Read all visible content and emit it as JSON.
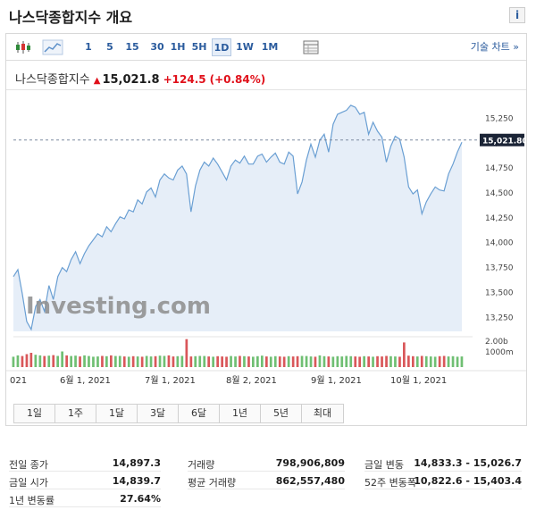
{
  "header": {
    "title": "나스닥종합지수 개요",
    "info_label": "i"
  },
  "toolbar": {
    "intervals": [
      "1",
      "5",
      "15",
      "30",
      "1H",
      "5H",
      "1D",
      "1W",
      "1M"
    ],
    "active_interval": "1D",
    "tech_chart_link": "기술 차트 »"
  },
  "quote": {
    "name": "나스닥종합지수",
    "price": "15,021.8",
    "change": "+124.5",
    "change_pct": "(+0.84%)",
    "up_color": "#e0101a"
  },
  "chart_data": {
    "type": "area",
    "y_ticks": [
      "15,250",
      "15,000",
      "14,750",
      "14,500",
      "14,250",
      "14,000",
      "13,750",
      "13,500",
      "13,250"
    ],
    "ylim": [
      13100,
      15450
    ],
    "current_value_label": "15,021.80",
    "current_value": 15021.8,
    "volume_ticks": [
      "2.00b",
      "1000m"
    ],
    "x_labels": [
      "021",
      "6월 1, 2021",
      "7월 1, 2021",
      "8월 2, 2021",
      "9월 1, 2021",
      "10월 1, 2021"
    ],
    "watermark": "Investing.com",
    "values": [
      13650,
      13720,
      13480,
      13200,
      13120,
      13350,
      13420,
      13300,
      13560,
      13420,
      13650,
      13740,
      13700,
      13820,
      13900,
      13780,
      13880,
      13960,
      14020,
      14080,
      14050,
      14150,
      14100,
      14180,
      14250,
      14230,
      14320,
      14300,
      14420,
      14380,
      14500,
      14540,
      14450,
      14620,
      14680,
      14640,
      14620,
      14720,
      14760,
      14680,
      14300,
      14560,
      14720,
      14800,
      14760,
      14840,
      14780,
      14700,
      14620,
      14760,
      14820,
      14790,
      14860,
      14780,
      14780,
      14860,
      14880,
      14800,
      14850,
      14890,
      14800,
      14780,
      14900,
      14860,
      14480,
      14600,
      14820,
      14980,
      14850,
      15020,
      15080,
      14900,
      15180,
      15280,
      15300,
      15320,
      15370,
      15350,
      15280,
      15300,
      15080,
      15200,
      15110,
      15050,
      14800,
      14960,
      15060,
      15030,
      14850,
      14550,
      14480,
      14520,
      14280,
      14400,
      14480,
      14550,
      14520,
      14510,
      14680,
      14780,
      14900,
      15000
    ],
    "volumes": [
      0.8,
      0.9,
      0.85,
      1.0,
      1.1,
      0.95,
      0.9,
      0.85,
      0.88,
      0.92,
      0.86,
      1.2,
      0.9,
      0.85,
      0.88,
      0.82,
      0.9,
      0.85,
      0.8,
      0.82,
      0.86,
      0.84,
      0.9,
      0.85,
      0.86,
      0.82,
      0.8,
      0.84,
      0.82,
      0.8,
      0.86,
      0.82,
      0.84,
      0.88,
      0.86,
      0.9,
      0.82,
      0.84,
      0.86,
      2.15,
      0.82,
      0.84,
      0.86,
      0.85,
      0.82,
      0.8,
      0.84,
      0.82,
      0.8,
      0.85,
      0.82,
      0.86,
      0.84,
      0.82,
      0.8,
      0.84,
      0.88,
      0.82,
      0.8,
      0.84,
      0.82,
      0.8,
      0.84,
      0.82,
      0.84,
      0.86,
      0.85,
      0.82,
      0.8,
      0.9,
      0.84,
      0.82,
      0.8,
      0.84,
      0.82,
      0.86,
      0.84,
      0.82,
      0.8,
      0.84,
      0.82,
      0.8,
      0.84,
      0.82,
      0.86,
      0.84,
      0.82,
      0.8,
      1.9,
      0.88,
      0.84,
      0.82,
      0.86,
      0.84,
      0.82,
      0.8,
      0.84,
      0.86,
      0.82,
      0.84,
      0.8,
      0.82
    ]
  },
  "range_buttons": [
    "1일",
    "1주",
    "1달",
    "3달",
    "6달",
    "1년",
    "5년",
    "최대"
  ],
  "stats": [
    {
      "label": "전일 종가",
      "value": "14,897.3"
    },
    {
      "label": "금일 시가",
      "value": "14,839.7"
    },
    {
      "label": "1년 변동률",
      "value": "27.64%"
    },
    {
      "label": "거래량",
      "value": "798,906,809"
    },
    {
      "label": "평균 거래량",
      "value": "862,557,480"
    },
    {
      "label": "금일 변동",
      "value": "14,833.3 - 15,026.7"
    },
    {
      "label": "52주 변동폭",
      "value": "10,822.6 - 15,403.4"
    }
  ]
}
